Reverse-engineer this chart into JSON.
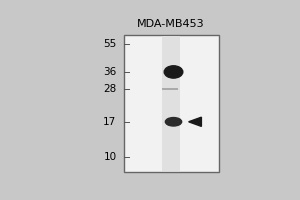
{
  "title": "MDA-MB453",
  "mw_markers": [
    55,
    36,
    28,
    17,
    10
  ],
  "bg_color": "#c8c8c8",
  "panel_color": "#f2f2f2",
  "lane_color": "#e0e0e0",
  "band_color": "#1a1a1a",
  "border_color": "#666666",
  "title_fontsize": 8,
  "marker_fontsize": 7.5
}
